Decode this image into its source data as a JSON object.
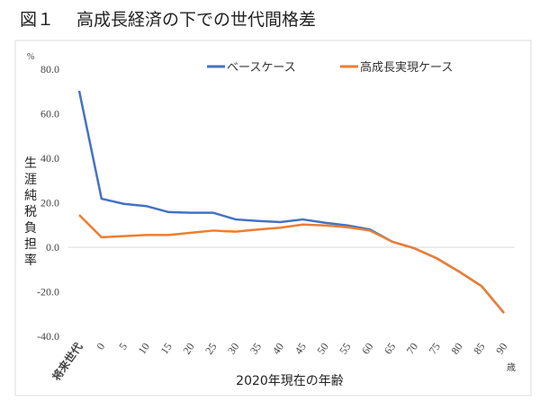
{
  "chart_data": {
    "type": "line",
    "title": "図１　 高成長経済の下での世代間格差",
    "ylabel": "生涯純税負担率",
    "yunit": "%",
    "xlabel": "2020年現在の年齢",
    "xunit": "歳",
    "ylim": [
      -40,
      80
    ],
    "yticks": [
      "80.0",
      "60.0",
      "40.0",
      "20.0",
      "0.0",
      "-20.0",
      "-40.0"
    ],
    "ytick_values": [
      80,
      60,
      40,
      20,
      0,
      -20,
      -40
    ],
    "categories": [
      "将来世代",
      "0",
      "5",
      "10",
      "15",
      "20",
      "25",
      "30",
      "35",
      "40",
      "45",
      "50",
      "55",
      "60",
      "65",
      "70",
      "75",
      "80",
      "85",
      "90"
    ],
    "legend_position": "top-right",
    "series": [
      {
        "name": "ベースケース",
        "color": "#4472C4",
        "values": [
          70.3,
          21.8,
          19.5,
          18.5,
          15.8,
          15.5,
          15.5,
          12.5,
          11.8,
          11.3,
          12.5,
          11.0,
          9.8,
          8.0,
          2.5,
          -0.5,
          -5.0,
          -11.0,
          -17.5,
          -29.5
        ]
      },
      {
        "name": "高成長実現ケース",
        "color": "#ED7D31",
        "values": [
          14.5,
          4.5,
          5.0,
          5.5,
          5.5,
          6.5,
          7.5,
          7.0,
          8.0,
          8.8,
          10.2,
          9.8,
          9.0,
          7.5,
          2.5,
          -0.5,
          -5.0,
          -11.0,
          -17.5,
          -29.5
        ]
      }
    ]
  }
}
